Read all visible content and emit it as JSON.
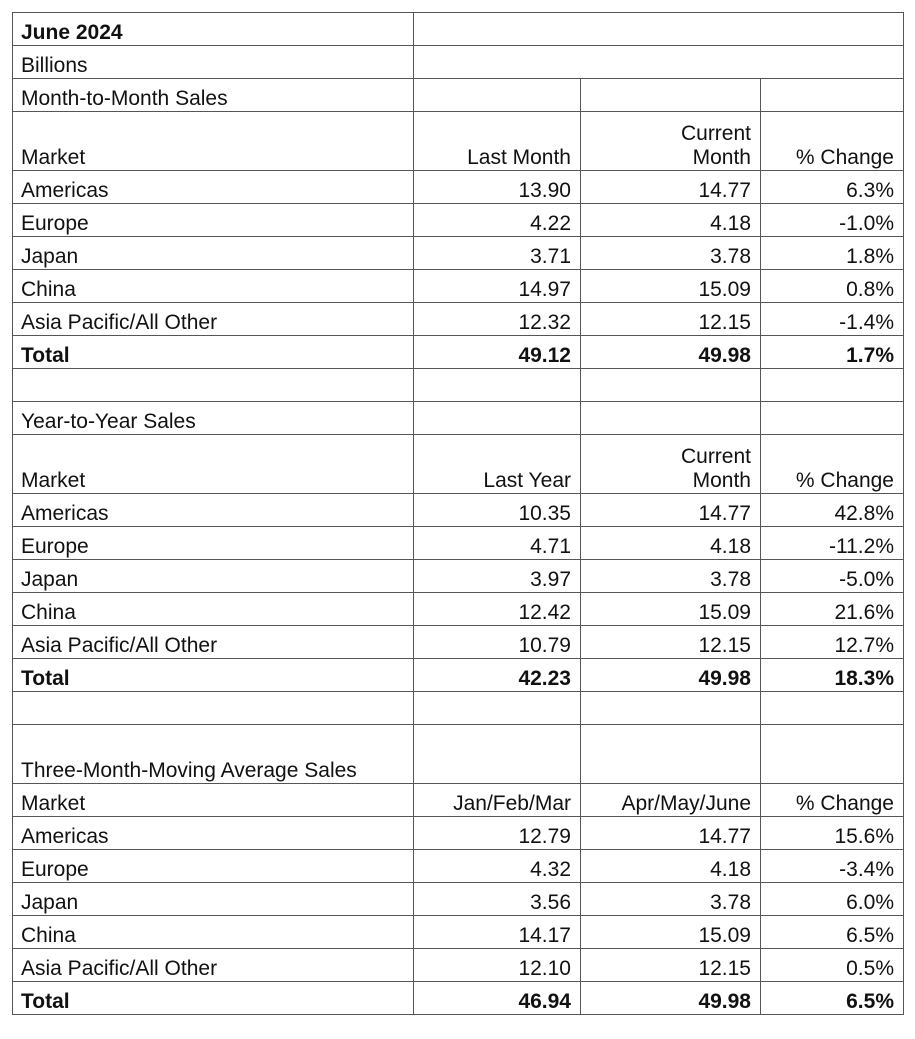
{
  "header": {
    "title": "June 2024",
    "unit": "Billions"
  },
  "sections": [
    {
      "title": "Month-to-Month Sales",
      "columns": [
        "Market",
        "Last Month",
        "Current Month",
        "% Change"
      ],
      "rows": [
        [
          "Americas",
          "13.90",
          "14.77",
          "6.3%"
        ],
        [
          "Europe",
          "4.22",
          "4.18",
          "-1.0%"
        ],
        [
          "Japan",
          "3.71",
          "3.78",
          "1.8%"
        ],
        [
          "China",
          "14.97",
          "15.09",
          "0.8%"
        ],
        [
          "Asia Pacific/All Other",
          "12.32",
          "12.15",
          "-1.4%"
        ]
      ],
      "total": [
        "Total",
        "49.12",
        "49.98",
        "1.7%"
      ]
    },
    {
      "title": "Year-to-Year Sales",
      "columns": [
        "Market",
        "Last Year",
        "Current Month",
        "% Change"
      ],
      "rows": [
        [
          "Americas",
          "10.35",
          "14.77",
          "42.8%"
        ],
        [
          "Europe",
          "4.71",
          "4.18",
          "-11.2%"
        ],
        [
          "Japan",
          "3.97",
          "3.78",
          "-5.0%"
        ],
        [
          "China",
          "12.42",
          "15.09",
          "21.6%"
        ],
        [
          "Asia Pacific/All Other",
          "10.79",
          "12.15",
          "12.7%"
        ]
      ],
      "total": [
        "Total",
        "42.23",
        "49.98",
        "18.3%"
      ]
    },
    {
      "title": "Three-Month-Moving Average Sales",
      "columns": [
        "Market",
        "Jan/Feb/Mar",
        "Apr/May/June",
        "% Change"
      ],
      "rows": [
        [
          "Americas",
          "12.79",
          "14.77",
          "15.6%"
        ],
        [
          "Europe",
          "4.32",
          "4.18",
          "-3.4%"
        ],
        [
          "Japan",
          "3.56",
          "3.78",
          "6.0%"
        ],
        [
          "China",
          "14.17",
          "15.09",
          "6.5%"
        ],
        [
          "Asia Pacific/All Other",
          "12.10",
          "12.15",
          "0.5%"
        ]
      ],
      "total": [
        "Total",
        "46.94",
        "49.98",
        "6.5%"
      ]
    }
  ]
}
